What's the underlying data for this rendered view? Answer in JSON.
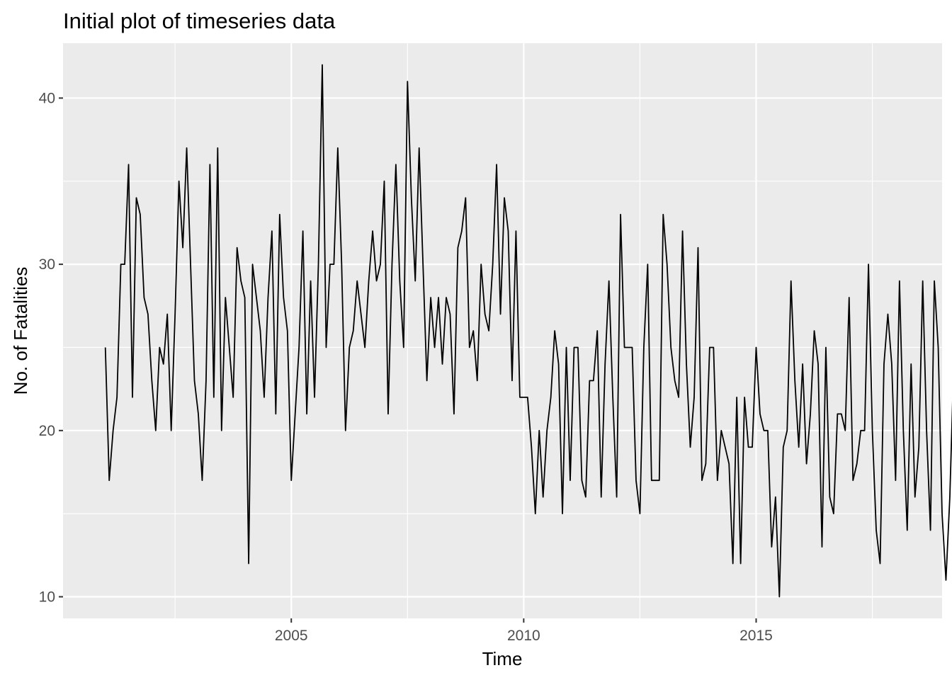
{
  "chart_data": {
    "type": "line",
    "title": "Initial plot of timeseries data",
    "xlabel": "Time",
    "ylabel": "No. of Fatalities",
    "xlim": [
      2000.09,
      2019.0
    ],
    "ylim": [
      8.7,
      43.3
    ],
    "x_ticks": [
      2005,
      2010,
      2015
    ],
    "x_tick_labels": [
      "2005",
      "2010",
      "2015"
    ],
    "y_ticks": [
      10,
      20,
      30,
      40
    ],
    "y_tick_labels": [
      "10",
      "20",
      "30",
      "40"
    ],
    "grid": true,
    "background": "#EBEBEB",
    "gridline_color": "#FFFFFF",
    "line_color": "#000000",
    "series": [
      {
        "start": 2001.0,
        "frequency": 12,
        "values": [
          25,
          17,
          20,
          22,
          30,
          30,
          36,
          22,
          34,
          33,
          28,
          27,
          23,
          20,
          25,
          24,
          27,
          20,
          27,
          35,
          31,
          37,
          30,
          23,
          21,
          17,
          23,
          36,
          22,
          37,
          20,
          28,
          25,
          22,
          31,
          29,
          28,
          12,
          30,
          28,
          26,
          22,
          28,
          32,
          21,
          33,
          28,
          26,
          17,
          21,
          25,
          32,
          21,
          29,
          22,
          30,
          42,
          25,
          30,
          30,
          37,
          30,
          20,
          25,
          26,
          29,
          27,
          25,
          29,
          32,
          29,
          30,
          35,
          21,
          30,
          36,
          29,
          25,
          41,
          34,
          29,
          37,
          30,
          23,
          28,
          25,
          28,
          24,
          28,
          27,
          21,
          31,
          32,
          34,
          25,
          26,
          23,
          30,
          27,
          26,
          30,
          36,
          27,
          34,
          32,
          23,
          32,
          22,
          22,
          22,
          19,
          15,
          20,
          16,
          20,
          22,
          26,
          24,
          15,
          25,
          17,
          25,
          25,
          17,
          16,
          23,
          23,
          26,
          16,
          24,
          29,
          22,
          16,
          33,
          25,
          25,
          25,
          17,
          15,
          25,
          30,
          17,
          17,
          17,
          33,
          30,
          25,
          23,
          22,
          32,
          24,
          19,
          22,
          31,
          17,
          18,
          25,
          25,
          17,
          20,
          19,
          18,
          12,
          22,
          12,
          22,
          19,
          19,
          25,
          21,
          20,
          20,
          13,
          16,
          10,
          19,
          20,
          29,
          23,
          19,
          24,
          18,
          21,
          26,
          24,
          13,
          25,
          16,
          15,
          21,
          21,
          20,
          28,
          17,
          18,
          20,
          20,
          30,
          20,
          14,
          12,
          24,
          27,
          24,
          17,
          29,
          20,
          14,
          24,
          16,
          19,
          29,
          20,
          14,
          29,
          25,
          15,
          11,
          16,
          24
        ]
      }
    ]
  }
}
